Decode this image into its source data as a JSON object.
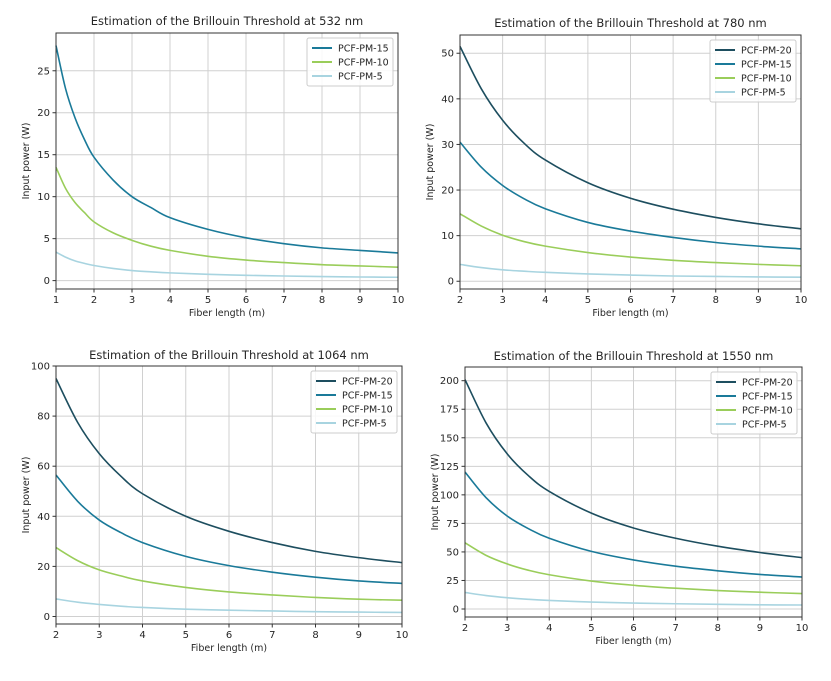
{
  "chart_data": [
    {
      "type": "line",
      "title": "Estimation of the Brillouin Threshold at 532 nm",
      "xlabel": "Fiber length (m)",
      "ylabel": "Input power (W)",
      "xlim": [
        1,
        10
      ],
      "ylim": [
        -1,
        29.5
      ],
      "xticks": [
        1,
        2,
        3,
        4,
        5,
        6,
        7,
        8,
        9,
        10
      ],
      "yticks": [
        0,
        5,
        10,
        15,
        20,
        25
      ],
      "grid": true,
      "legend_position": "top-right",
      "x": [
        1,
        1.25,
        1.5,
        1.75,
        2,
        2.5,
        3,
        3.5,
        4,
        5,
        6,
        7,
        8,
        9,
        10
      ],
      "series": [
        {
          "name": "PCF-PM-15",
          "color": "#1a7a99",
          "values": [
            28.0,
            22.9,
            19.4,
            16.8,
            14.7,
            12.0,
            10.0,
            8.7,
            7.5,
            6.1,
            5.1,
            4.4,
            3.9,
            3.6,
            3.3
          ]
        },
        {
          "name": "PCF-PM-10",
          "color": "#9acd5a",
          "values": [
            13.5,
            11.0,
            9.3,
            8.1,
            7.0,
            5.7,
            4.8,
            4.1,
            3.6,
            2.9,
            2.45,
            2.15,
            1.9,
            1.75,
            1.6
          ]
        },
        {
          "name": "PCF-PM-5",
          "color": "#a8d4e0",
          "values": [
            3.4,
            2.8,
            2.35,
            2.05,
            1.8,
            1.45,
            1.2,
            1.05,
            0.92,
            0.75,
            0.63,
            0.55,
            0.48,
            0.43,
            0.4
          ]
        }
      ]
    },
    {
      "type": "line",
      "title": "Estimation of the Brillouin Threshold at 780 nm",
      "xlabel": "Fiber length (m)",
      "ylabel": "Input power (W)",
      "xlim": [
        2,
        10
      ],
      "ylim": [
        -1.7,
        54
      ],
      "xticks": [
        2,
        3,
        4,
        5,
        6,
        7,
        8,
        9,
        10
      ],
      "yticks": [
        0,
        10,
        20,
        30,
        40,
        50
      ],
      "grid": true,
      "legend_position": "top-right",
      "x": [
        2,
        2.5,
        3,
        3.5,
        4,
        5,
        6,
        7,
        8,
        9,
        10
      ],
      "series": [
        {
          "name": "PCF-PM-20",
          "color": "#1d4e5f",
          "values": [
            51.5,
            42.2,
            35.3,
            30.3,
            26.6,
            21.6,
            18.2,
            15.8,
            14.0,
            12.6,
            11.5
          ]
        },
        {
          "name": "PCF-PM-15",
          "color": "#1a7a99",
          "values": [
            30.5,
            25.0,
            21.0,
            18.1,
            15.9,
            12.9,
            11.0,
            9.6,
            8.5,
            7.7,
            7.1
          ]
        },
        {
          "name": "PCF-PM-10",
          "color": "#9acd5a",
          "values": [
            14.8,
            12.1,
            10.1,
            8.7,
            7.7,
            6.3,
            5.3,
            4.6,
            4.1,
            3.7,
            3.4
          ]
        },
        {
          "name": "PCF-PM-5",
          "color": "#a8d4e0",
          "values": [
            3.7,
            3.0,
            2.5,
            2.2,
            1.95,
            1.6,
            1.35,
            1.15,
            1.05,
            0.95,
            0.9
          ]
        }
      ]
    },
    {
      "type": "line",
      "title": "Estimation of the Brillouin Threshold at 1064 nm",
      "xlabel": "Fiber length (m)",
      "ylabel": "Input power (W)",
      "xlim": [
        2,
        10
      ],
      "ylim": [
        -3,
        100
      ],
      "xticks": [
        2,
        3,
        4,
        5,
        6,
        7,
        8,
        9,
        10
      ],
      "yticks": [
        0,
        20,
        40,
        60,
        80,
        100
      ],
      "grid": true,
      "legend_position": "top-right",
      "x": [
        2,
        2.5,
        3,
        3.5,
        4,
        5,
        6,
        7,
        8,
        9,
        10
      ],
      "series": [
        {
          "name": "PCF-PM-20",
          "color": "#1d4e5f",
          "values": [
            95.0,
            77.5,
            65.0,
            56.0,
            49.0,
            40.0,
            34.0,
            29.5,
            26.0,
            23.5,
            21.5
          ]
        },
        {
          "name": "PCF-PM-15",
          "color": "#1a7a99",
          "values": [
            56.5,
            46.0,
            38.5,
            33.5,
            29.5,
            24.0,
            20.3,
            17.7,
            15.7,
            14.2,
            13.2
          ]
        },
        {
          "name": "PCF-PM-10",
          "color": "#9acd5a",
          "values": [
            27.5,
            22.3,
            18.6,
            16.2,
            14.2,
            11.6,
            9.8,
            8.6,
            7.6,
            6.9,
            6.5
          ]
        },
        {
          "name": "PCF-PM-5",
          "color": "#a8d4e0",
          "values": [
            7.0,
            5.7,
            4.8,
            4.1,
            3.6,
            2.9,
            2.5,
            2.2,
            1.9,
            1.75,
            1.6
          ]
        }
      ]
    },
    {
      "type": "line",
      "title": "Estimation of the Brillouin Threshold at 1550 nm",
      "xlabel": "Fiber length (m)",
      "ylabel": "Input power (W)",
      "xlim": [
        2,
        10
      ],
      "ylim": [
        -7,
        212
      ],
      "xticks": [
        2,
        3,
        4,
        5,
        6,
        7,
        8,
        9,
        10
      ],
      "yticks": [
        0,
        25,
        50,
        75,
        100,
        125,
        150,
        175,
        200
      ],
      "grid": true,
      "legend_position": "top-right",
      "x": [
        2,
        2.5,
        3,
        3.5,
        4,
        5,
        6,
        7,
        8,
        9,
        10
      ],
      "series": [
        {
          "name": "PCF-PM-20",
          "color": "#1d4e5f",
          "values": [
            201.0,
            163.0,
            136.0,
            117.0,
            103.0,
            84.0,
            71.0,
            62.0,
            55.0,
            49.5,
            45.0
          ]
        },
        {
          "name": "PCF-PM-15",
          "color": "#1a7a99",
          "values": [
            120.0,
            97.5,
            81.5,
            70.5,
            62.0,
            50.5,
            43.0,
            37.5,
            33.5,
            30.3,
            28.0
          ]
        },
        {
          "name": "PCF-PM-10",
          "color": "#9acd5a",
          "values": [
            58.0,
            47.0,
            39.5,
            34.0,
            30.0,
            24.5,
            20.8,
            18.2,
            16.2,
            14.7,
            13.5
          ]
        },
        {
          "name": "PCF-PM-5",
          "color": "#a8d4e0",
          "values": [
            14.5,
            11.8,
            9.9,
            8.5,
            7.5,
            6.1,
            5.2,
            4.6,
            4.1,
            3.7,
            3.5
          ]
        }
      ]
    }
  ]
}
